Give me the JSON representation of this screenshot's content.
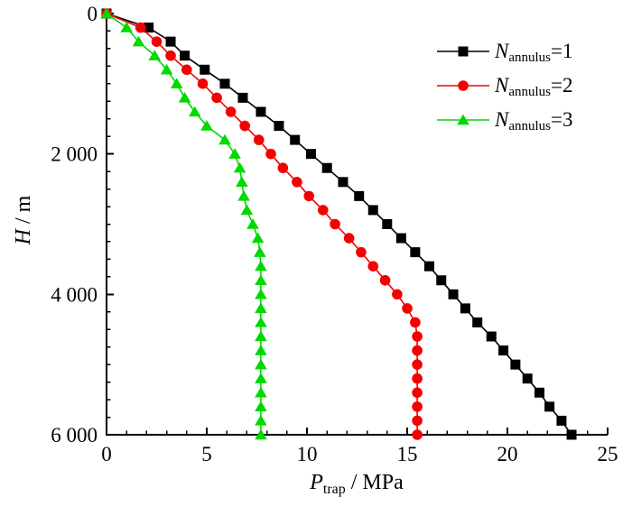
{
  "chart_data": {
    "type": "line",
    "title": "",
    "xlabel": {
      "var": "P",
      "sub": "trap",
      "unit": " / MPa",
      "full": "P_trap / MPa"
    },
    "ylabel": {
      "var": "H",
      "unit": " / m",
      "full": "H / m"
    },
    "x_axis": {
      "min": 0,
      "max": 25,
      "major_ticks": [
        0,
        5,
        10,
        15,
        20,
        25
      ],
      "tick_labels": [
        "0",
        "5",
        "10",
        "15",
        "20",
        "25"
      ],
      "minor_step": 1
    },
    "y_axis": {
      "min": 0,
      "max": 6000,
      "major_ticks": [
        0,
        2000,
        4000,
        6000
      ],
      "tick_labels": [
        "0",
        "2 000",
        "4 000",
        "6 000"
      ],
      "minor_step": 250,
      "inverted": true
    },
    "grid": false,
    "legend_position": "top-right",
    "depth_m": [
      0,
      200,
      400,
      600,
      800,
      1000,
      1200,
      1400,
      1600,
      1800,
      2000,
      2200,
      2400,
      2600,
      2800,
      3000,
      3200,
      3400,
      3600,
      3800,
      4000,
      4200,
      4400,
      4600,
      4800,
      5000,
      5200,
      5400,
      5600,
      5800,
      6000
    ],
    "series": [
      {
        "label_var": "N",
        "label_sub": "annulus",
        "label_eq": "=1",
        "legend": "N_annulus=1",
        "color": "#000000",
        "marker": "square",
        "values": [
          0,
          2.1,
          3.2,
          3.9,
          4.9,
          5.9,
          6.8,
          7.7,
          8.6,
          9.4,
          10.2,
          11.0,
          11.8,
          12.6,
          13.3,
          14.0,
          14.7,
          15.4,
          16.1,
          16.7,
          17.3,
          17.9,
          18.5,
          19.2,
          19.8,
          20.4,
          21.0,
          21.6,
          22.1,
          22.7,
          23.2
        ]
      },
      {
        "label_var": "N",
        "label_sub": "annulus",
        "label_eq": "=2",
        "legend": "N_annulus=2",
        "color": "#f40000",
        "marker": "circle",
        "values": [
          0,
          1.7,
          2.5,
          3.2,
          4.0,
          4.8,
          5.5,
          6.2,
          6.9,
          7.6,
          8.2,
          8.8,
          9.5,
          10.1,
          10.8,
          11.4,
          12.1,
          12.7,
          13.3,
          13.9,
          14.5,
          15.0,
          15.4,
          15.5,
          15.5,
          15.5,
          15.5,
          15.5,
          15.5,
          15.5,
          15.5
        ]
      },
      {
        "label_var": "N",
        "label_sub": "annulus",
        "label_eq": "=3",
        "legend": "N_annulus=3",
        "color": "#00d900",
        "marker": "triangle",
        "values": [
          0,
          1.0,
          1.6,
          2.4,
          3.0,
          3.5,
          3.9,
          4.4,
          5.0,
          5.9,
          6.4,
          6.65,
          6.75,
          6.85,
          7.0,
          7.3,
          7.55,
          7.65,
          7.7,
          7.7,
          7.7,
          7.7,
          7.7,
          7.7,
          7.7,
          7.7,
          7.7,
          7.7,
          7.7,
          7.7,
          7.7
        ]
      }
    ]
  }
}
